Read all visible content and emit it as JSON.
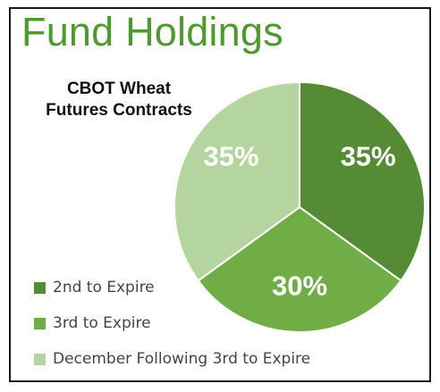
{
  "chart_data": {
    "type": "pie",
    "title": "Fund Holdings",
    "subtitle_lines": [
      "CBOT Wheat",
      "Futures Contracts"
    ],
    "slices": [
      {
        "name": "2nd to Expire",
        "value": 35,
        "label": "35%",
        "color": "#548b34"
      },
      {
        "name": "3rd to Expire",
        "value": 30,
        "label": "30%",
        "color": "#70ad47"
      },
      {
        "name": "December Following 3rd to Expire",
        "value": 35,
        "label": "35%",
        "color": "#b4d4a0"
      }
    ],
    "legend_position": "bottom-left"
  }
}
